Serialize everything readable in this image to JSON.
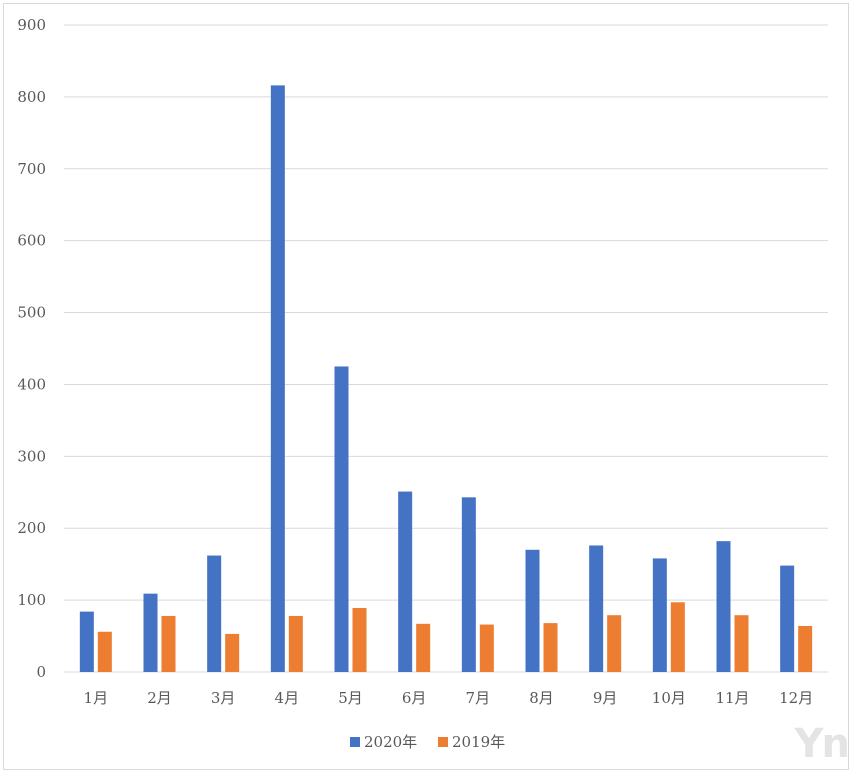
{
  "chart_data": {
    "type": "bar",
    "title": "",
    "xlabel": "",
    "ylabel": "",
    "categories": [
      "1月",
      "2月",
      "3月",
      "4月",
      "5月",
      "6月",
      "7月",
      "8月",
      "9月",
      "10月",
      "11月",
      "12月"
    ],
    "series": [
      {
        "name": "2020年",
        "color": "#4472c4",
        "values": [
          84,
          109,
          162,
          816,
          425,
          251,
          243,
          170,
          176,
          158,
          182,
          148
        ]
      },
      {
        "name": "2019年",
        "color": "#ed7d31",
        "values": [
          56,
          78,
          53,
          78,
          89,
          67,
          66,
          68,
          79,
          97,
          79,
          64
        ]
      }
    ],
    "ylim": [
      0,
      900
    ],
    "yticks": [
      0,
      100,
      200,
      300,
      400,
      500,
      600,
      700,
      800,
      900
    ],
    "grid": true,
    "legend_position": "bottom"
  },
  "watermark": "Yn"
}
